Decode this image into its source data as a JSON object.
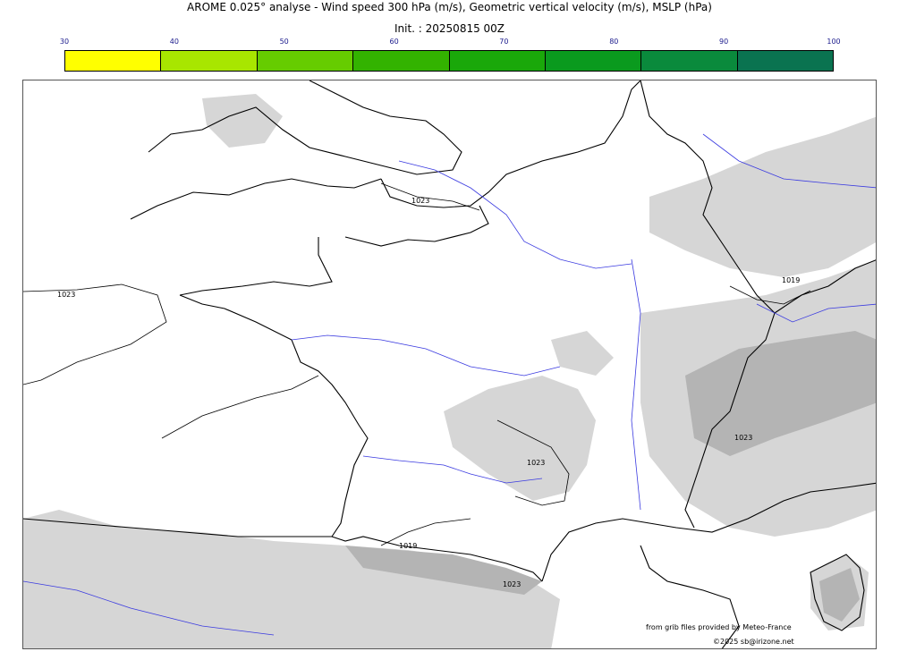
{
  "header": {
    "title": "AROME 0.025° analyse - Wind speed 300 hPa (m/s), Geometric vertical velocity (m/s), MSLP (hPa)",
    "init": "Init. : 20250815 00Z"
  },
  "colorbar": {
    "ticks": [
      "30",
      "40",
      "50",
      "60",
      "70",
      "80",
      "90",
      "100"
    ],
    "colors": [
      "#ffff00",
      "#a8e600",
      "#66cc00",
      "#33b300",
      "#1aa80a",
      "#0a9a1e",
      "#0a8a3c",
      "#0a7350"
    ]
  },
  "map": {
    "isobar_labels": [
      "1023",
      "1023",
      "1023",
      "1019",
      "1019",
      "1023",
      "1023"
    ]
  },
  "footer": {
    "credit_source": "from grib files provided by Meteo-France",
    "copyright": "©2025 sb@irizone.net"
  }
}
